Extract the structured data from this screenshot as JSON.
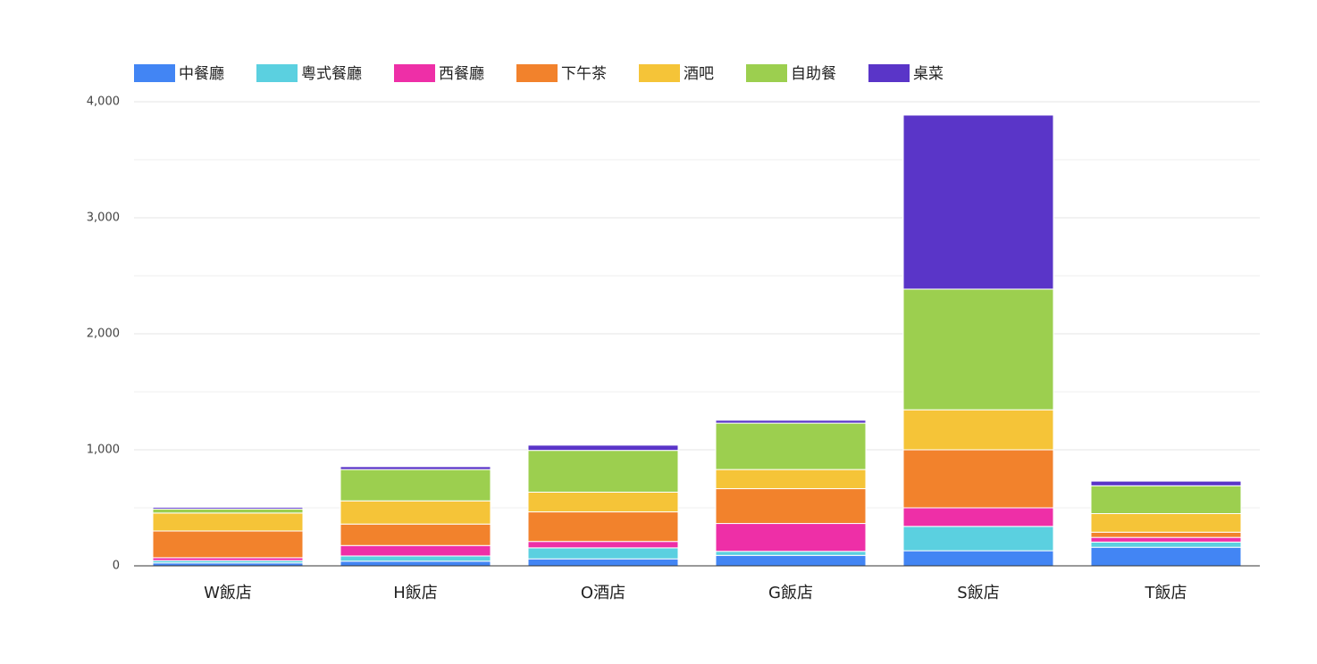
{
  "chart_data": {
    "type": "stacked_bar",
    "categories": [
      "W飯店",
      "H飯店",
      "O酒店",
      "G飯店",
      "S飯店",
      "T飯店"
    ],
    "series": [
      {
        "name": "中餐廳",
        "color": "#4285f4",
        "values": [
          25,
          40,
          60,
          90,
          130,
          160
        ]
      },
      {
        "name": "粵式餐廳",
        "color": "#5bd0e0",
        "values": [
          20,
          45,
          95,
          35,
          210,
          45
        ]
      },
      {
        "name": "西餐廳",
        "color": "#ee2fa7",
        "values": [
          25,
          90,
          55,
          240,
          160,
          40
        ]
      },
      {
        "name": "下午茶",
        "color": "#f2822c",
        "values": [
          230,
          185,
          255,
          300,
          500,
          45
        ]
      },
      {
        "name": "酒吧",
        "color": "#f5c438",
        "values": [
          155,
          200,
          170,
          165,
          345,
          160
        ]
      },
      {
        "name": "自助餐",
        "color": "#9ccf4f",
        "values": [
          35,
          270,
          360,
          400,
          1040,
          240
        ]
      },
      {
        "name": "桌菜",
        "color": "#5a35c8",
        "values": [
          15,
          25,
          45,
          25,
          1500,
          40
        ]
      }
    ],
    "ylim": [
      0,
      4000
    ],
    "yticks": [
      0,
      {
        "value": 1000,
        "label": "1,000"
      },
      {
        "value": 2000,
        "label": "2,000"
      },
      {
        "value": 3000,
        "label": "3,000"
      },
      {
        "value": 4000,
        "label": "4,000"
      }
    ],
    "grid": true
  }
}
